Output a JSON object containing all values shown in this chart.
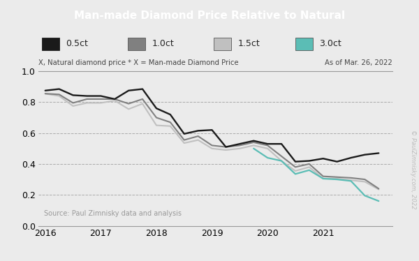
{
  "title": "Man-made Diamond Price Relative to Natural",
  "subtitle_left": "X, Natural diamond price * X = Man-made Diamond Price",
  "subtitle_right": "As of Mar. 26, 2022",
  "source_text": "Source: Paul Zimnisky data and analysis",
  "watermark": "© PaulZimnisky.com, 2022",
  "ylim": [
    0.0,
    1.0
  ],
  "yticks": [
    0.0,
    0.2,
    0.4,
    0.6,
    0.8,
    1.0
  ],
  "title_bg": "#606060",
  "legend_bg": "#c0c0c0",
  "plot_bg": "#ebebeb",
  "line_colors": {
    "0.5ct": "#1a1a1a",
    "1.0ct": "#808080",
    "1.5ct": "#c0c0c0",
    "3.0ct": "#5bbdb5"
  },
  "legend_items": [
    "0.5ct",
    "1.0ct",
    "1.5ct",
    "3.0ct"
  ],
  "series": {
    "0.5ct": {
      "x": [
        2016.0,
        2016.25,
        2016.5,
        2016.75,
        2017.0,
        2017.25,
        2017.5,
        2017.75,
        2018.0,
        2018.25,
        2018.5,
        2018.75,
        2019.0,
        2019.25,
        2019.5,
        2019.75,
        2020.0,
        2020.25,
        2020.5,
        2020.75,
        2021.0,
        2021.25,
        2021.5,
        2021.75,
        2022.0
      ],
      "y": [
        0.875,
        0.885,
        0.845,
        0.84,
        0.84,
        0.82,
        0.875,
        0.885,
        0.76,
        0.72,
        0.595,
        0.615,
        0.62,
        0.51,
        0.53,
        0.55,
        0.53,
        0.53,
        0.415,
        0.42,
        0.435,
        0.415,
        0.44,
        0.46,
        0.47
      ]
    },
    "1.0ct": {
      "x": [
        2016.0,
        2016.25,
        2016.5,
        2016.75,
        2017.0,
        2017.25,
        2017.5,
        2017.75,
        2018.0,
        2018.25,
        2018.5,
        2018.75,
        2019.0,
        2019.25,
        2019.5,
        2019.75,
        2020.0,
        2020.25,
        2020.5,
        2020.75,
        2021.0,
        2021.25,
        2021.5,
        2021.75,
        2022.0
      ],
      "y": [
        0.855,
        0.85,
        0.795,
        0.82,
        0.82,
        0.82,
        0.79,
        0.82,
        0.7,
        0.67,
        0.555,
        0.58,
        0.52,
        0.51,
        0.52,
        0.54,
        0.52,
        0.45,
        0.38,
        0.4,
        0.32,
        0.315,
        0.31,
        0.3,
        0.24
      ]
    },
    "1.5ct": {
      "x": [
        2016.0,
        2016.25,
        2016.5,
        2016.75,
        2017.0,
        2017.25,
        2017.5,
        2017.75,
        2018.0,
        2018.25,
        2018.5,
        2018.75,
        2019.0,
        2019.25,
        2019.5,
        2019.75,
        2020.0,
        2020.25,
        2020.5,
        2020.75,
        2021.0,
        2021.25,
        2021.5,
        2021.75,
        2022.0
      ],
      "y": [
        0.855,
        0.84,
        0.775,
        0.795,
        0.795,
        0.81,
        0.755,
        0.79,
        0.65,
        0.645,
        0.535,
        0.555,
        0.5,
        0.49,
        0.5,
        0.52,
        0.5,
        0.42,
        0.355,
        0.38,
        0.305,
        0.305,
        0.295,
        0.285,
        0.235
      ]
    },
    "3.0ct": {
      "x": [
        2019.75,
        2020.0,
        2020.25,
        2020.5,
        2020.75,
        2021.0,
        2021.25,
        2021.5,
        2021.75,
        2022.0
      ],
      "y": [
        0.5,
        0.44,
        0.42,
        0.335,
        0.36,
        0.305,
        0.3,
        0.29,
        0.195,
        0.16
      ]
    }
  }
}
